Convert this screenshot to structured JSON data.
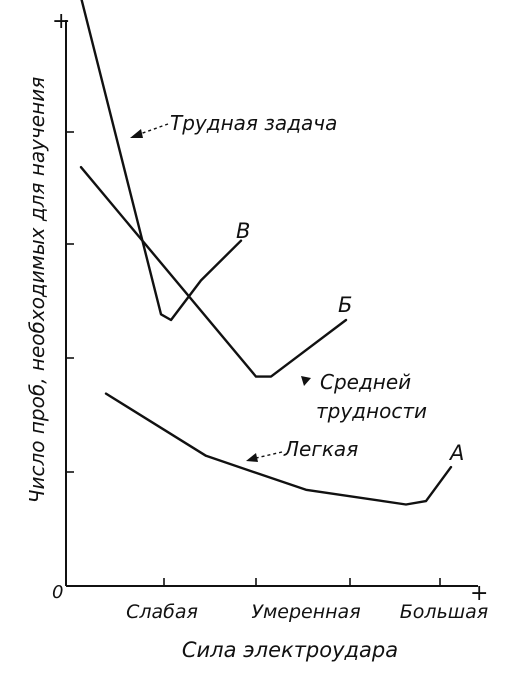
{
  "chart_data": {
    "type": "line",
    "xlabel": "Сила электроудара",
    "ylabel": "Число проб, необходимых для научения",
    "x_ticks": [
      "Слабая",
      "Умеренная",
      "Большая"
    ],
    "x_range": [
      0,
      4
    ],
    "y_range": [
      0,
      5
    ],
    "origin_label": "0",
    "axis_end_marks": [
      "+",
      "+"
    ],
    "grid": false,
    "series": [
      {
        "name": "Трудная задача",
        "end_letter": "В",
        "points": [
          [
            0.15,
            5.2
          ],
          [
            0.95,
            2.4
          ],
          [
            1.05,
            2.35
          ],
          [
            1.35,
            2.7
          ],
          [
            1.75,
            3.05
          ]
        ]
      },
      {
        "name": "Средней трудности",
        "end_letter": "Б",
        "points": [
          [
            0.15,
            3.7
          ],
          [
            1.9,
            1.85
          ],
          [
            2.05,
            1.85
          ],
          [
            2.35,
            2.05
          ],
          [
            2.8,
            2.35
          ]
        ]
      },
      {
        "name": "Легкая",
        "end_letter": "А",
        "points": [
          [
            0.4,
            1.7
          ],
          [
            1.4,
            1.15
          ],
          [
            2.4,
            0.85
          ],
          [
            3.4,
            0.72
          ],
          [
            3.6,
            0.75
          ],
          [
            3.85,
            1.05
          ]
        ]
      }
    ]
  }
}
